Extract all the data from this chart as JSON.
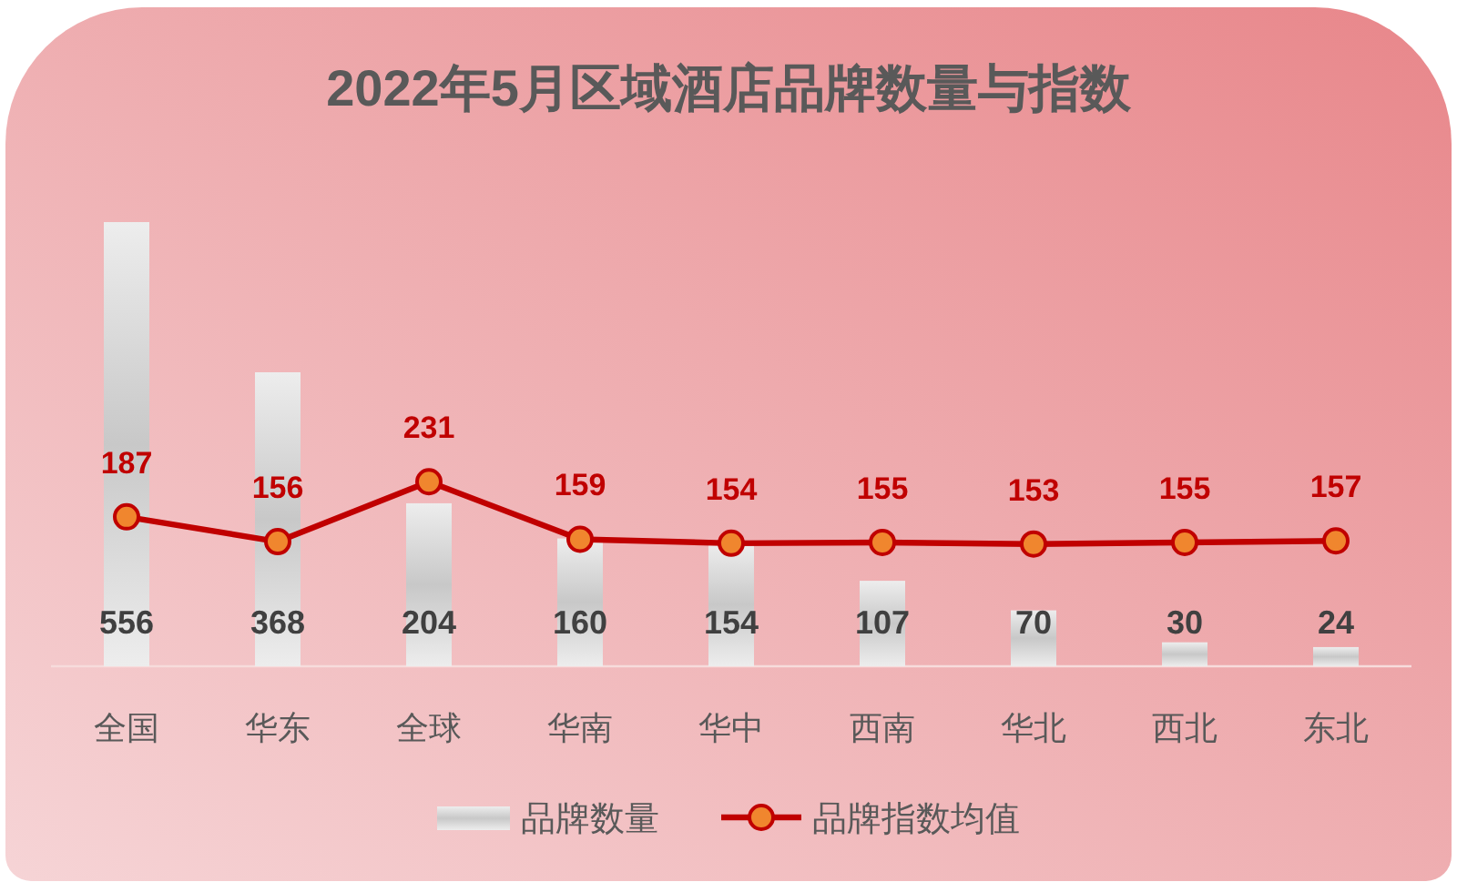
{
  "chart_data": {
    "type": "bar",
    "title": "2022年5月区域酒店品牌数量与指数",
    "categories": [
      "全国",
      "华东",
      "全球",
      "华南",
      "华中",
      "西南",
      "华北",
      "西北",
      "东北"
    ],
    "series": [
      {
        "name": "品牌数量",
        "color": "#c8c8c8",
        "values": [
          556,
          368,
          204,
          160,
          154,
          107,
          70,
          30,
          24
        ]
      },
      {
        "name": "品牌指数均值",
        "type": "line",
        "color": "#c00000",
        "values": [
          187,
          156,
          231,
          159,
          154,
          155,
          153,
          155,
          157
        ]
      }
    ],
    "data_labels": true,
    "legend": "bottom",
    "marker": "circle",
    "line_style": "solid",
    "tick_labels": "x"
  }
}
